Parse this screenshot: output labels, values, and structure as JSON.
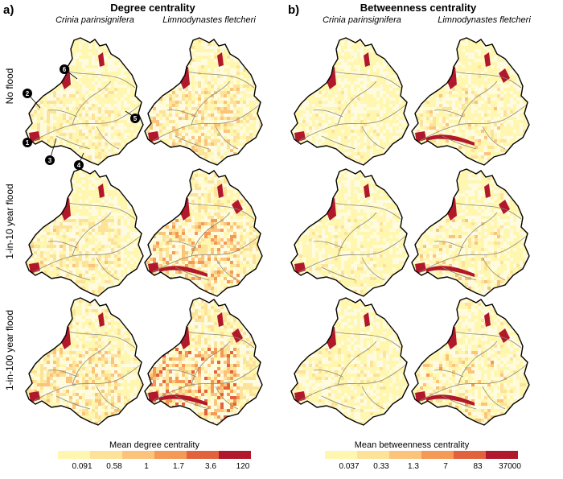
{
  "panels": {
    "a": {
      "letter": "a)",
      "title": "Degree centrality"
    },
    "b": {
      "letter": "b)",
      "title": "Betweenness centrality"
    }
  },
  "species": [
    "Crinia parinsignifera",
    "Limnodynastes fletcheri"
  ],
  "rows": [
    "No flood",
    "1-in-10 year flood",
    "1-in-100 year flood"
  ],
  "site_markers": [
    "1",
    "2",
    "3",
    "4",
    "5",
    "6"
  ],
  "legends": {
    "degree": {
      "title": "Mean degree centrality",
      "ticks": [
        "0.091",
        "0.58",
        "1",
        "1.7",
        "3.6",
        "120"
      ],
      "colors": [
        "#fff7b0",
        "#fde39a",
        "#fbc47a",
        "#f59a56",
        "#e2623d",
        "#b2182b"
      ]
    },
    "betweenness": {
      "title": "Mean betweenness centrality",
      "ticks": [
        "0.037",
        "0.33",
        "1.3",
        "7",
        "83",
        "37000"
      ],
      "colors": [
        "#fff7b0",
        "#fde39a",
        "#fbc47a",
        "#f59a56",
        "#e2623d",
        "#b2182b"
      ]
    }
  },
  "colors": {
    "outline": "#000000",
    "river": "#8a8a7a",
    "hotspot": "#b2182b",
    "low": "#fff5b8",
    "mid": "#f7b06a"
  }
}
